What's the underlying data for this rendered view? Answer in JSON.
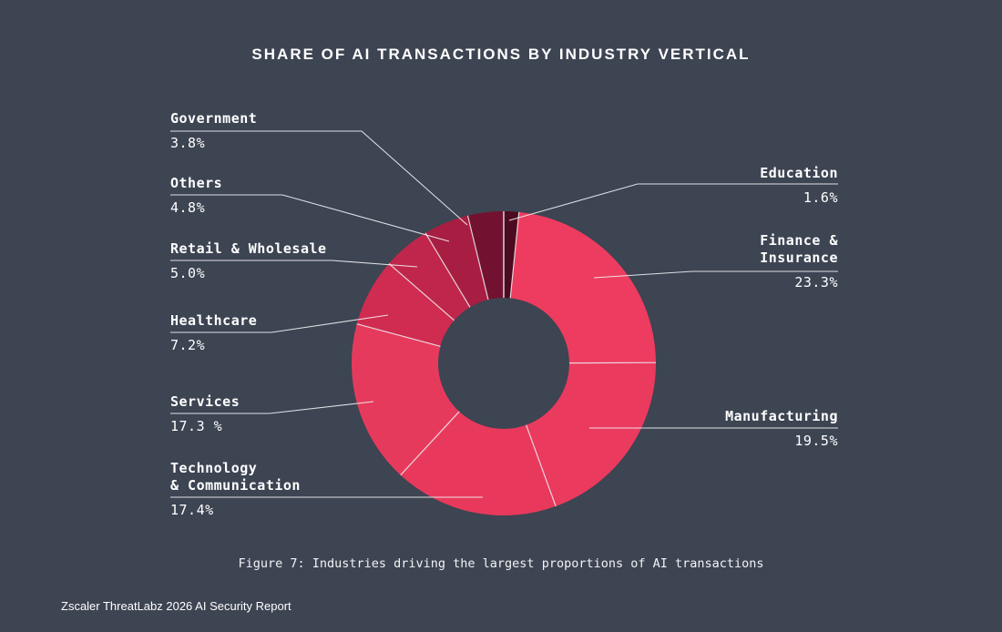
{
  "title": "SHARE OF AI TRANSACTIONS BY INDUSTRY VERTICAL",
  "caption": "Figure 7: Industries driving the largest proportions of AI transactions",
  "footer": "Zscaler ThreatLabz 2026 AI Security Report",
  "colors": {
    "background": "#3d4452",
    "text": "#ffffff",
    "leader_line": "#f0f2f4"
  },
  "chart_data": {
    "type": "pie",
    "subtype": "donut",
    "title": "SHARE OF AI TRANSACTIONS BY INDUSTRY VERTICAL",
    "unit": "%",
    "legend_position": "none",
    "segments": [
      {
        "label": "Education",
        "display_label": "Education",
        "value": 1.6,
        "display_value": "1.6%",
        "color": "#4c0b20"
      },
      {
        "label": "Finance & Insurance",
        "display_label": "Finance &\nInsurance",
        "value": 23.3,
        "display_value": "23.3%",
        "color": "#ed3c5f"
      },
      {
        "label": "Manufacturing",
        "display_label": "Manufacturing",
        "value": 19.5,
        "display_value": "19.5%",
        "color": "#ea3a5d"
      },
      {
        "label": "Technology & Communication",
        "display_label": "Technology\n& Communication",
        "value": 17.4,
        "display_value": "17.4%",
        "color": "#e8395c"
      },
      {
        "label": "Services",
        "display_label": "Services",
        "value": 17.3,
        "display_value": "17.3 %",
        "color": "#e63a5d"
      },
      {
        "label": "Healthcare",
        "display_label": "Healthcare",
        "value": 7.2,
        "display_value": "7.2%",
        "color": "#d02b50"
      },
      {
        "label": "Retail & Wholesale",
        "display_label": "Retail & Wholesale",
        "value": 5.0,
        "display_value": "5.0%",
        "color": "#c0264b"
      },
      {
        "label": "Others",
        "display_label": "Others",
        "value": 4.8,
        "display_value": "4.8%",
        "color": "#a81e42"
      },
      {
        "label": "Government",
        "display_label": "Government",
        "value": 3.8,
        "display_value": "3.8%",
        "color": "#731230"
      }
    ]
  }
}
